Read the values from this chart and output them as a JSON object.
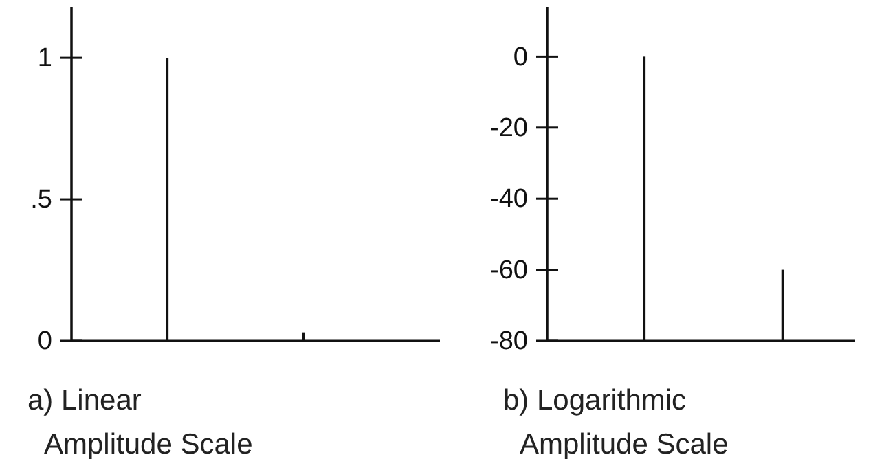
{
  "chart_data": [
    {
      "type": "bar",
      "categories": [
        null,
        null
      ],
      "values": [
        1,
        0.03
      ],
      "color": "#111111",
      "ylim": [
        0,
        1.18
      ],
      "yticks": [
        0,
        {
          "value": 0.5,
          "label": ".5"
        },
        1
      ],
      "xlabel": "a) Linear\nAmplitude Scale",
      "grid": false
    },
    {
      "type": "bar",
      "categories": [
        null,
        null
      ],
      "values": [
        80,
        20
      ],
      "base": [
        -80,
        -80
      ],
      "color": "#111111",
      "ylim": [
        -80,
        14
      ],
      "yticks": [
        0,
        -20,
        -40,
        -60,
        -80
      ],
      "xlabel": "b) Logarithmic\nAmplitude Scale",
      "grid": false
    }
  ]
}
